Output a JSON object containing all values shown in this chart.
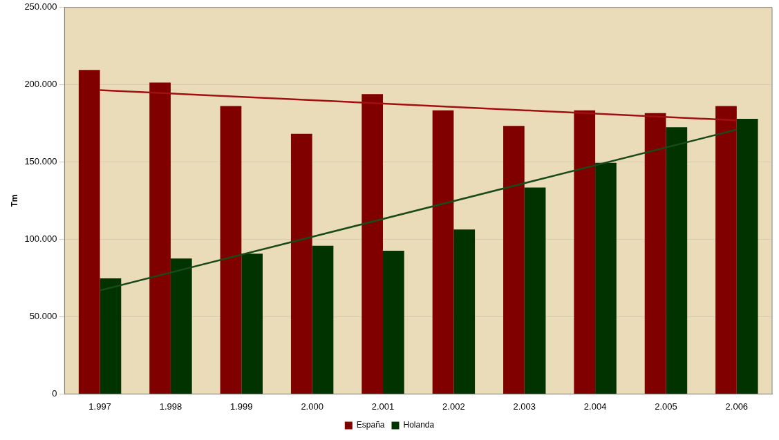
{
  "chart_data": {
    "type": "bar",
    "ylabel": "Tm",
    "categories": [
      "1.997",
      "1.998",
      "1.999",
      "2.000",
      "2.001",
      "2.002",
      "2.003",
      "2.004",
      "2.005",
      "2.006"
    ],
    "series": [
      {
        "name": "España",
        "color": "#800000",
        "values": [
          209600,
          201400,
          186200,
          168300,
          194000,
          183500,
          173400,
          183500,
          181700,
          186200
        ]
      },
      {
        "name": "Holanda",
        "color": "#003300",
        "values": [
          74800,
          87600,
          90800,
          95900,
          92700,
          106400,
          133500,
          149500,
          172500,
          178000
        ]
      },
      {
        "type": "line",
        "color": "#a01010",
        "x": [
          "1.997",
          "2.006"
        ],
        "values": [
          196500,
          177000
        ]
      },
      {
        "type": "line",
        "color": "#1a4a1a",
        "x": [
          "1.997",
          "2.006"
        ],
        "values": [
          67000,
          171000
        ]
      }
    ],
    "ylim": [
      0,
      250000
    ],
    "yticks": [
      {
        "value": 0,
        "label": "0"
      },
      {
        "value": 50000,
        "label": "50.000"
      },
      {
        "value": 100000,
        "label": "100.000"
      },
      {
        "value": 150000,
        "label": "150.000"
      },
      {
        "value": 200000,
        "label": "200.000"
      },
      {
        "value": 250000,
        "label": "250.000"
      }
    ],
    "grid": "y",
    "legend": "bottom",
    "marker": "none"
  }
}
